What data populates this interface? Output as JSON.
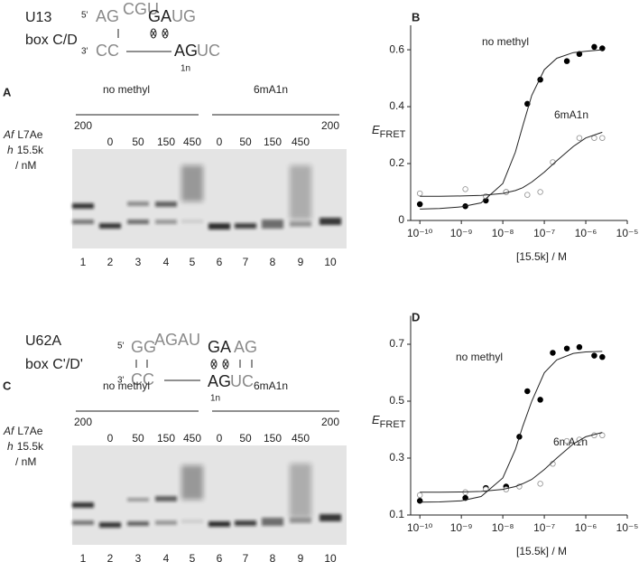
{
  "panels": [
    "A",
    "B",
    "C",
    "D"
  ],
  "rna": [
    {
      "name": [
        "U13",
        "box C/D"
      ],
      "top": [
        "5'",
        "AG",
        "CGU",
        "GA",
        "UG"
      ],
      "bottom": [
        "3'",
        "CC",
        "AG",
        "UC",
        "1n"
      ]
    },
    {
      "name": [
        "U62A",
        "box C'/D'"
      ],
      "top": [
        "5'",
        "GG",
        "AGAU",
        "GA",
        "AG"
      ],
      "bottom": [
        "3'",
        "CC",
        "AG",
        "UC",
        "1n"
      ]
    }
  ],
  "gels": [
    {
      "groups": [
        "no methyl",
        "6mA1n"
      ],
      "row_labels": [
        [
          "Af",
          "L7Ae"
        ],
        [
          "h",
          "15.5k"
        ],
        [
          "/ nM"
        ]
      ],
      "concentrations": [
        "200",
        "0",
        "50",
        "150",
        "450",
        "0",
        "50",
        "150",
        "450",
        "200"
      ],
      "lanes": [
        "1",
        "2",
        "3",
        "4",
        "5",
        "6",
        "7",
        "8",
        "9",
        "10"
      ]
    },
    {
      "groups": [
        "no methyl",
        "6mA1n"
      ],
      "row_labels": [
        [
          "Af",
          "L7Ae"
        ],
        [
          "h",
          "15.5k"
        ],
        [
          "/ nM"
        ]
      ],
      "concentrations": [
        "200",
        "0",
        "50",
        "150",
        "450",
        "0",
        "50",
        "150",
        "450",
        "200"
      ],
      "lanes": [
        "1",
        "2",
        "3",
        "4",
        "5",
        "6",
        "7",
        "8",
        "9",
        "10"
      ]
    }
  ],
  "chart_data": [
    {
      "type": "scatter",
      "xscale": "log",
      "xlabel": "[15.5k] / M",
      "ylabel": "E",
      "ylabel_sub": "FRET",
      "xlim": [
        6e-11,
        1e-05
      ],
      "xticks": [
        {
          "value": 1e-10,
          "label": "10⁻¹⁰"
        },
        {
          "value": 1e-09,
          "label": "10⁻⁹"
        },
        {
          "value": 1e-08,
          "label": "10⁻⁸"
        },
        {
          "value": 1e-07,
          "label": "10⁻⁷"
        },
        {
          "value": 1e-06,
          "label": "10⁻⁶"
        },
        {
          "value": 1e-05,
          "label": "10⁻⁵"
        }
      ],
      "ylim": [
        0,
        0.686
      ],
      "yticks": [
        0,
        0.2,
        0.4,
        0.6
      ],
      "annotations": [
        "no methyl",
        "6mA1n"
      ],
      "series": [
        {
          "marker": "filled",
          "color": "#000000",
          "x": [
            1e-10,
            1.25e-09,
            3.9e-09,
            1.2e-08,
            3.9e-08,
            8e-08,
            3.5e-07,
            7e-07,
            1.6e-06,
            2.5e-06
          ],
          "values": [
            0.057,
            0.05,
            0.07,
            0.1,
            0.41,
            0.495,
            0.56,
            0.585,
            0.61,
            0.605
          ]
        },
        {
          "marker": "open",
          "color": "#9a9a9a",
          "x": [
            1e-10,
            1.25e-09,
            3.9e-09,
            1.2e-08,
            3.9e-08,
            8e-08,
            1.6e-07,
            7e-07,
            1.6e-06,
            2.5e-06
          ],
          "values": [
            0.095,
            0.11,
            0.085,
            0.1,
            0.09,
            0.1,
            0.205,
            0.29,
            0.29,
            0.29
          ]
        },
        {
          "marker": "line",
          "color": "#222222",
          "x": [
            1e-10,
            3e-10,
            1e-09,
            3e-09,
            1e-08,
            2e-08,
            3e-08,
            5e-08,
            1e-07,
            2e-07,
            5e-07,
            1e-06,
            2.5e-06
          ],
          "values": [
            0.04,
            0.042,
            0.048,
            0.062,
            0.13,
            0.24,
            0.33,
            0.44,
            0.53,
            0.57,
            0.59,
            0.595,
            0.6
          ]
        },
        {
          "marker": "line",
          "color": "#222222",
          "x": [
            1e-10,
            3e-10,
            1e-09,
            3e-09,
            1e-08,
            2e-08,
            3e-08,
            5e-08,
            1e-07,
            2e-07,
            5e-07,
            1e-06,
            2.5e-06
          ],
          "values": [
            0.085,
            0.085,
            0.086,
            0.088,
            0.095,
            0.105,
            0.115,
            0.135,
            0.17,
            0.21,
            0.26,
            0.29,
            0.31
          ]
        }
      ]
    },
    {
      "type": "scatter",
      "xscale": "log",
      "xlabel": "[15.5k] / M",
      "ylabel": "E",
      "ylabel_sub": "FRET",
      "xlim": [
        6e-11,
        1e-05
      ],
      "xticks": [
        {
          "value": 1e-10,
          "label": "10⁻¹⁰"
        },
        {
          "value": 1e-09,
          "label": "10⁻⁹"
        },
        {
          "value": 1e-08,
          "label": "10⁻⁸"
        },
        {
          "value": 1e-07,
          "label": "10⁻⁷"
        },
        {
          "value": 1e-06,
          "label": "10⁻⁶"
        },
        {
          "value": 1e-05,
          "label": "10⁻⁵"
        }
      ],
      "ylim": [
        0.1,
        0.8
      ],
      "yticks": [
        0.1,
        0.3,
        0.5,
        0.7
      ],
      "annotations": [
        "no methyl",
        "6mA1n"
      ],
      "series": [
        {
          "marker": "filled",
          "color": "#000000",
          "x": [
            1e-10,
            1.25e-09,
            3.9e-09,
            1.2e-08,
            2.5e-08,
            3.9e-08,
            8e-08,
            1.6e-07,
            3.5e-07,
            7e-07,
            1.6e-06,
            2.5e-06
          ],
          "values": [
            0.15,
            0.16,
            0.195,
            0.2,
            0.375,
            0.535,
            0.505,
            0.67,
            0.685,
            0.69,
            0.66,
            0.655
          ]
        },
        {
          "marker": "open",
          "color": "#9a9a9a",
          "x": [
            1e-10,
            1.25e-09,
            3.9e-09,
            1.2e-08,
            2.5e-08,
            8e-08,
            1.6e-07,
            3.5e-07,
            7e-07,
            1.6e-06,
            2.5e-06
          ],
          "values": [
            0.17,
            0.18,
            0.19,
            0.19,
            0.2,
            0.21,
            0.28,
            0.36,
            0.365,
            0.38,
            0.38
          ]
        },
        {
          "marker": "line",
          "color": "#222222",
          "x": [
            1e-10,
            3e-10,
            1e-09,
            3e-09,
            1e-08,
            2e-08,
            3e-08,
            5e-08,
            1e-07,
            2e-07,
            5e-07,
            1e-06,
            2.5e-06
          ],
          "values": [
            0.145,
            0.146,
            0.15,
            0.165,
            0.23,
            0.33,
            0.41,
            0.5,
            0.6,
            0.645,
            0.668,
            0.673,
            0.675
          ]
        },
        {
          "marker": "line",
          "color": "#222222",
          "x": [
            1e-10,
            3e-10,
            1e-09,
            3e-09,
            1e-08,
            2e-08,
            3e-08,
            5e-08,
            1e-07,
            2e-07,
            5e-07,
            1e-06,
            2.5e-06
          ],
          "values": [
            0.18,
            0.18,
            0.181,
            0.183,
            0.19,
            0.2,
            0.21,
            0.225,
            0.26,
            0.3,
            0.35,
            0.375,
            0.39
          ]
        }
      ]
    }
  ]
}
